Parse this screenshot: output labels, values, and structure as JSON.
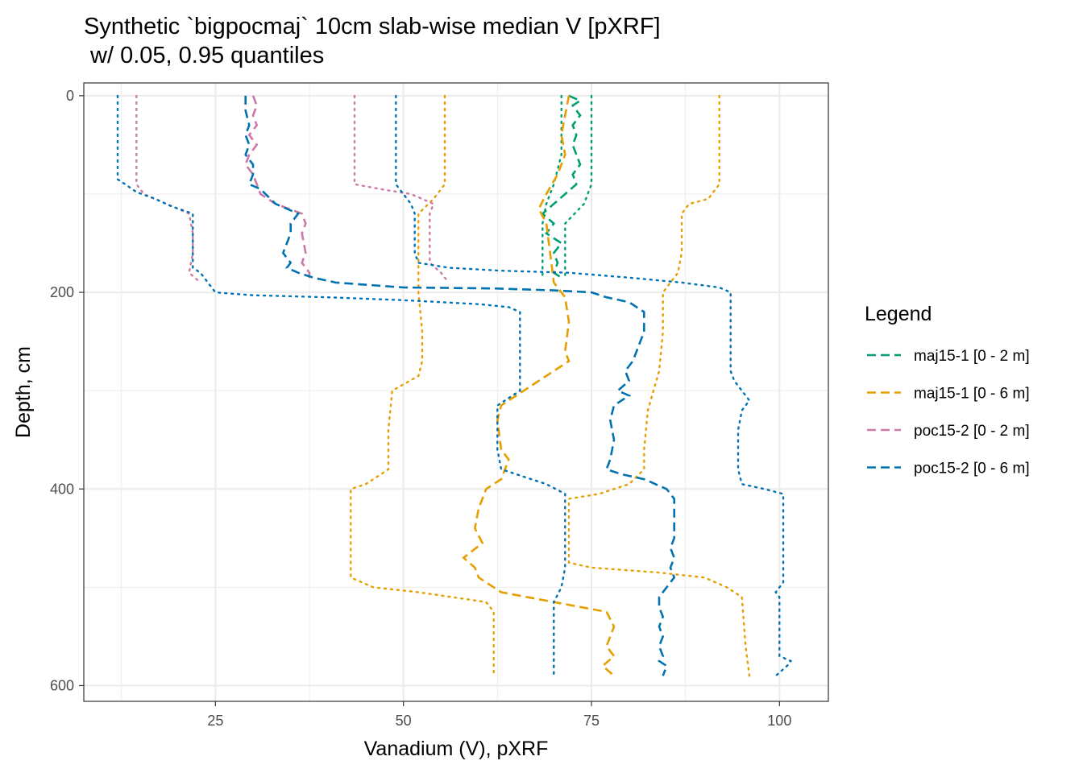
{
  "chart_data": {
    "type": "line",
    "title_line1": "Synthetic `bigpocmaj` 10cm slab-wise median V [pXRF]",
    "title_line2": " w/ 0.05, 0.95 quantiles",
    "xlabel": "Vanadium (V), pXRF",
    "ylabel": "Depth, cm",
    "xlim": [
      7.5,
      106.5
    ],
    "ylim": [
      -13,
      616
    ],
    "y_reversed": true,
    "x_ticks": [
      25,
      50,
      75,
      100
    ],
    "y_ticks": [
      0,
      200,
      400,
      600
    ],
    "grid": true,
    "legend": {
      "title": "Legend",
      "placement": "right",
      "entries": [
        "maj15-1 [0 - 2 m]",
        "maj15-1 [0 - 6 m]",
        "poc15-2 [0 - 2 m]",
        "poc15-2 [0 - 6 m]"
      ]
    },
    "series": [
      {
        "name": "maj15-1 [0 - 2 m]",
        "color": "#009E73",
        "median": [
          [
            72,
            0
          ],
          [
            73.5,
            5
          ],
          [
            72.5,
            10
          ],
          [
            73.5,
            20
          ],
          [
            72.5,
            30
          ],
          [
            73,
            40
          ],
          [
            72.5,
            50
          ],
          [
            73,
            60
          ],
          [
            73.5,
            70
          ],
          [
            72.5,
            80
          ],
          [
            73,
            90
          ],
          [
            71.5,
            100
          ],
          [
            70,
            110
          ],
          [
            68.5,
            120
          ],
          [
            70,
            130
          ],
          [
            69,
            140
          ],
          [
            71,
            150
          ],
          [
            70,
            160
          ],
          [
            70.5,
            170
          ],
          [
            70,
            180
          ],
          [
            71,
            185
          ]
        ],
        "q05": [
          [
            71,
            0
          ],
          [
            71,
            30
          ],
          [
            71,
            60
          ],
          [
            70,
            90
          ],
          [
            69,
            110
          ],
          [
            68.5,
            130
          ],
          [
            68.5,
            150
          ],
          [
            68.5,
            170
          ],
          [
            68.5,
            185
          ]
        ],
        "q95": [
          [
            75,
            0
          ],
          [
            75,
            30
          ],
          [
            75,
            60
          ],
          [
            75,
            90
          ],
          [
            74,
            110
          ],
          [
            71.5,
            130
          ],
          [
            71.5,
            150
          ],
          [
            71.5,
            170
          ],
          [
            71.5,
            185
          ]
        ]
      },
      {
        "name": "maj15-1 [0 - 6 m]",
        "color": "#E69F00",
        "median": [
          [
            72,
            0
          ],
          [
            71.5,
            20
          ],
          [
            71,
            40
          ],
          [
            71.5,
            60
          ],
          [
            70.5,
            80
          ],
          [
            69,
            100
          ],
          [
            68,
            115
          ],
          [
            69,
            130
          ],
          [
            69.5,
            160
          ],
          [
            70,
            190
          ],
          [
            71.5,
            205
          ],
          [
            72,
            230
          ],
          [
            71.5,
            260
          ],
          [
            72,
            270
          ],
          [
            70,
            280
          ],
          [
            66,
            300
          ],
          [
            63,
            315
          ],
          [
            62.5,
            330
          ],
          [
            63,
            360
          ],
          [
            64,
            370
          ],
          [
            63,
            390
          ],
          [
            61,
            400
          ],
          [
            60,
            420
          ],
          [
            59.5,
            440
          ],
          [
            60.5,
            455
          ],
          [
            58,
            470
          ],
          [
            59.5,
            480
          ],
          [
            60,
            490
          ],
          [
            63,
            505
          ],
          [
            70,
            515
          ],
          [
            77,
            525
          ],
          [
            78,
            540
          ],
          [
            77,
            560
          ],
          [
            78,
            570
          ],
          [
            76.5,
            580
          ],
          [
            78,
            590
          ]
        ],
        "q05": [
          [
            55.5,
            0
          ],
          [
            55.5,
            30
          ],
          [
            55.5,
            60
          ],
          [
            55.5,
            90
          ],
          [
            54,
            105
          ],
          [
            52,
            120
          ],
          [
            52,
            160
          ],
          [
            52,
            200
          ],
          [
            52.5,
            240
          ],
          [
            52.5,
            270
          ],
          [
            52,
            285
          ],
          [
            48.5,
            300
          ],
          [
            48,
            340
          ],
          [
            48,
            380
          ],
          [
            45,
            395
          ],
          [
            43,
            400
          ],
          [
            43,
            440
          ],
          [
            43,
            480
          ],
          [
            43,
            490
          ],
          [
            46,
            500
          ],
          [
            52,
            505
          ],
          [
            61,
            515
          ],
          [
            62,
            525
          ],
          [
            62,
            560
          ],
          [
            62,
            590
          ]
        ],
        "q95": [
          [
            92,
            0
          ],
          [
            92,
            30
          ],
          [
            92,
            60
          ],
          [
            92,
            90
          ],
          [
            90.5,
            105
          ],
          [
            88,
            110
          ],
          [
            87,
            120
          ],
          [
            87,
            160
          ],
          [
            86.5,
            180
          ],
          [
            84.5,
            200
          ],
          [
            84.5,
            240
          ],
          [
            84,
            280
          ],
          [
            82.5,
            320
          ],
          [
            82,
            360
          ],
          [
            82,
            380
          ],
          [
            80,
            395
          ],
          [
            76,
            405
          ],
          [
            72,
            410
          ],
          [
            72,
            440
          ],
          [
            72,
            475
          ],
          [
            75,
            480
          ],
          [
            84,
            485
          ],
          [
            90,
            490
          ],
          [
            93,
            500
          ],
          [
            95,
            510
          ],
          [
            95.5,
            560
          ],
          [
            96,
            590
          ]
        ]
      },
      {
        "name": "poc15-2 [0 - 2 m]",
        "color": "#CC79A7",
        "median": [
          [
            30,
            0
          ],
          [
            30.5,
            10
          ],
          [
            30,
            20
          ],
          [
            30.5,
            30
          ],
          [
            29.5,
            40
          ],
          [
            30.5,
            50
          ],
          [
            29.5,
            60
          ],
          [
            29,
            70
          ],
          [
            30,
            80
          ],
          [
            30.5,
            90
          ],
          [
            31,
            100
          ],
          [
            33,
            110
          ],
          [
            36.5,
            120
          ],
          [
            37,
            130
          ],
          [
            36.5,
            140
          ],
          [
            37,
            160
          ],
          [
            36.5,
            170
          ],
          [
            37.5,
            180
          ],
          [
            37.5,
            190
          ]
        ],
        "q05": [
          [
            14.5,
            0
          ],
          [
            14.5,
            30
          ],
          [
            14.5,
            60
          ],
          [
            14.5,
            90
          ],
          [
            15.5,
            100
          ],
          [
            17,
            105
          ],
          [
            21.5,
            120
          ],
          [
            22,
            140
          ],
          [
            22,
            160
          ],
          [
            21.5,
            180
          ],
          [
            23,
            190
          ]
        ],
        "q95": [
          [
            43.5,
            0
          ],
          [
            43.5,
            30
          ],
          [
            43.5,
            60
          ],
          [
            43.5,
            90
          ],
          [
            47,
            95
          ],
          [
            51,
            100
          ],
          [
            54,
            110
          ],
          [
            53.5,
            120
          ],
          [
            53.5,
            130
          ],
          [
            53.5,
            160
          ],
          [
            53.5,
            170
          ],
          [
            55,
            180
          ],
          [
            56,
            190
          ]
        ]
      },
      {
        "name": "poc15-2 [0 - 6 m]",
        "color": "#0072B2",
        "median": [
          [
            29,
            0
          ],
          [
            29,
            15
          ],
          [
            29.5,
            30
          ],
          [
            29,
            40
          ],
          [
            29.5,
            50
          ],
          [
            29,
            60
          ],
          [
            30,
            70
          ],
          [
            30,
            80
          ],
          [
            29.5,
            90
          ],
          [
            31,
            95
          ],
          [
            33,
            110
          ],
          [
            34.5,
            115
          ],
          [
            36,
            120
          ],
          [
            35,
            130
          ],
          [
            35,
            140
          ],
          [
            34,
            160
          ],
          [
            35,
            170
          ],
          [
            34.5,
            175
          ],
          [
            36,
            180
          ],
          [
            38,
            185
          ],
          [
            41,
            190
          ],
          [
            50,
            195
          ],
          [
            62,
            196
          ],
          [
            70,
            198
          ],
          [
            75,
            200
          ],
          [
            77,
            205
          ],
          [
            80,
            210
          ],
          [
            82,
            220
          ],
          [
            82,
            240
          ],
          [
            81,
            260
          ],
          [
            80.5,
            270
          ],
          [
            79.5,
            280
          ],
          [
            80,
            290
          ],
          [
            78.5,
            300
          ],
          [
            80,
            305
          ],
          [
            78,
            315
          ],
          [
            77.5,
            330
          ],
          [
            78,
            350
          ],
          [
            77.5,
            370
          ],
          [
            77,
            380
          ],
          [
            79,
            385
          ],
          [
            82,
            390
          ],
          [
            85,
            400
          ],
          [
            86,
            410
          ],
          [
            86,
            430
          ],
          [
            86,
            450
          ],
          [
            85.5,
            460
          ],
          [
            86,
            470
          ],
          [
            85.5,
            480
          ],
          [
            86,
            490
          ],
          [
            85,
            500
          ],
          [
            84,
            510
          ],
          [
            84,
            520
          ],
          [
            84.5,
            530
          ],
          [
            84,
            540
          ],
          [
            84.5,
            550
          ],
          [
            84,
            560
          ],
          [
            84.5,
            570
          ],
          [
            84,
            575
          ],
          [
            85,
            580
          ],
          [
            84.5,
            590
          ]
        ],
        "q05": [
          [
            12,
            0
          ],
          [
            12,
            30
          ],
          [
            12,
            60
          ],
          [
            12,
            85
          ],
          [
            13,
            90
          ],
          [
            14.5,
            98
          ],
          [
            17,
            105
          ],
          [
            19,
            112
          ],
          [
            22,
            120
          ],
          [
            22,
            140
          ],
          [
            22,
            160
          ],
          [
            22,
            175
          ],
          [
            23,
            180
          ],
          [
            24,
            190
          ],
          [
            25,
            200
          ],
          [
            30,
            203
          ],
          [
            40,
            205
          ],
          [
            50,
            208
          ],
          [
            60,
            212
          ],
          [
            64,
            215
          ],
          [
            65.5,
            220
          ],
          [
            65.5,
            260
          ],
          [
            65.5,
            300
          ],
          [
            62.5,
            315
          ],
          [
            62.5,
            360
          ],
          [
            63,
            380
          ],
          [
            67,
            390
          ],
          [
            69,
            395
          ],
          [
            71.5,
            405
          ],
          [
            71.5,
            440
          ],
          [
            71.5,
            480
          ],
          [
            71,
            500
          ],
          [
            70,
            515
          ],
          [
            70,
            560
          ],
          [
            70,
            590
          ]
        ],
        "q95": [
          [
            49,
            0
          ],
          [
            49,
            30
          ],
          [
            49,
            60
          ],
          [
            49,
            90
          ],
          [
            50,
            100
          ],
          [
            51,
            110
          ],
          [
            51.5,
            120
          ],
          [
            51.5,
            140
          ],
          [
            51.5,
            160
          ],
          [
            52,
            170
          ],
          [
            56,
            175
          ],
          [
            63,
            178
          ],
          [
            72,
            180
          ],
          [
            80,
            185
          ],
          [
            87,
            190
          ],
          [
            92,
            195
          ],
          [
            93.5,
            200
          ],
          [
            93.5,
            240
          ],
          [
            93.5,
            280
          ],
          [
            94,
            290
          ],
          [
            95,
            300
          ],
          [
            96,
            310
          ],
          [
            95,
            320
          ],
          [
            94.5,
            340
          ],
          [
            94.5,
            380
          ],
          [
            95,
            395
          ],
          [
            98,
            400
          ],
          [
            100.5,
            405
          ],
          [
            100.5,
            440
          ],
          [
            100.5,
            480
          ],
          [
            100.5,
            495
          ],
          [
            100,
            500
          ],
          [
            99.5,
            505
          ],
          [
            100,
            510
          ],
          [
            100,
            540
          ],
          [
            100,
            570
          ],
          [
            101.5,
            575
          ],
          [
            101,
            580
          ],
          [
            99.5,
            590
          ]
        ]
      }
    ]
  }
}
